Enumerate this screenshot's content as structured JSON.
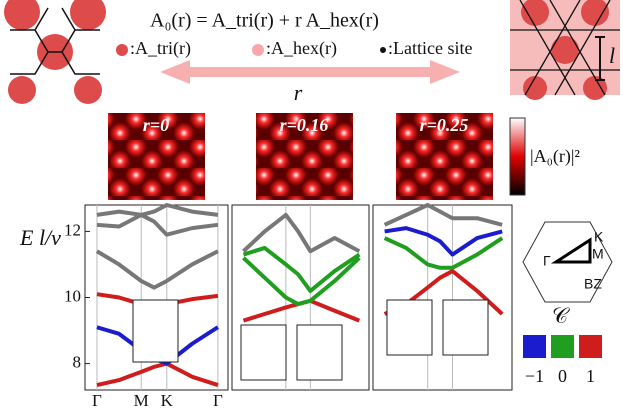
{
  "header": {
    "formula": "A₀(r) = A_tri(r) + r A_hex(r)",
    "legend": [
      ":A_tri(r)",
      ":A_hex(r)",
      ":Lattice site"
    ],
    "arrow_label": "r",
    "length_label": "l"
  },
  "heatmaps": {
    "titles": [
      "r=0",
      "r=0.16",
      "r=0.25"
    ],
    "colorbar_label": "|A₀(r)|²"
  },
  "brillouin_zone": {
    "labels": [
      "K",
      "Γ",
      "M",
      "BZ"
    ]
  },
  "chern_legend": {
    "title": "𝒞",
    "items": [
      {
        "label": "−1",
        "color": "#1c1ccf"
      },
      {
        "label": "0",
        "color": "#1f9e1f"
      },
      {
        "label": "1",
        "color": "#cf1c1c"
      }
    ]
  },
  "chart_data": [
    {
      "type": "line",
      "ylabel": "E l/v",
      "x": [
        0,
        0.5,
        1,
        1.29,
        1.577,
        2.15,
        2.732
      ],
      "xlim": [
        -0.27,
        2.96
      ],
      "xticks": [
        {
          "value": 0,
          "label": "Γ"
        },
        {
          "value": 1,
          "label": "M"
        },
        {
          "value": 1.577,
          "label": "K"
        },
        {
          "value": 2.732,
          "label": "Γ"
        }
      ],
      "ylim": [
        7.2,
        12.8
      ],
      "yticks": [
        8,
        10,
        12
      ],
      "grid": true,
      "series": [
        {
          "color": "#cf1c1c",
          "values": [
            7.35,
            7.5,
            7.75,
            7.9,
            8.0,
            7.6,
            7.35
          ]
        },
        {
          "color": "#1c1ccf",
          "values": [
            9.1,
            8.9,
            8.4,
            8.15,
            8.0,
            8.6,
            9.1
          ]
        },
        {
          "color": "#cf1c1c",
          "values": [
            10.1,
            10.0,
            9.8,
            9.75,
            9.8,
            9.95,
            10.05
          ]
        },
        {
          "color": "#777777",
          "values": [
            11.4,
            11.0,
            10.5,
            10.3,
            10.5,
            11.0,
            11.4
          ]
        },
        {
          "color": "#777777",
          "values": [
            12.2,
            12.15,
            12.5,
            12.3,
            11.9,
            12.1,
            12.2
          ]
        },
        {
          "color": "#777777",
          "values": [
            12.5,
            12.6,
            12.5,
            12.6,
            12.8,
            12.6,
            12.5
          ]
        }
      ]
    },
    {
      "type": "line",
      "x": [
        0,
        0.5,
        1,
        1.29,
        1.577,
        2.15,
        2.732
      ],
      "xlim": [
        -0.27,
        2.96
      ],
      "xticks": [
        1,
        1.577
      ],
      "ylim": [
        7.2,
        12.8
      ],
      "grid": true,
      "series": [
        {
          "color": "#cf1c1c",
          "values": [
            9.3,
            9.5,
            9.7,
            9.8,
            9.9,
            9.6,
            9.3
          ]
        },
        {
          "color": "#1f9e1f",
          "values": [
            11.2,
            10.6,
            10.0,
            9.8,
            9.9,
            10.5,
            11.2
          ]
        },
        {
          "color": "#1f9e1f",
          "values": [
            11.3,
            11.5,
            11.0,
            10.7,
            10.2,
            10.8,
            11.3
          ]
        },
        {
          "color": "#777777",
          "values": [
            11.4,
            12.0,
            12.5,
            12.0,
            11.4,
            11.8,
            11.4
          ]
        }
      ]
    },
    {
      "type": "line",
      "x": [
        0,
        0.5,
        1,
        1.29,
        1.577,
        2.15,
        2.732
      ],
      "xlim": [
        -0.27,
        2.96
      ],
      "xticks": [
        1,
        1.577
      ],
      "ylim": [
        7.2,
        12.8
      ],
      "grid": true,
      "series": [
        {
          "color": "#cf1c1c",
          "values": [
            9.5,
            9.8,
            10.3,
            10.6,
            10.8,
            10.2,
            9.5
          ]
        },
        {
          "color": "#1f9e1f",
          "values": [
            11.8,
            11.5,
            11.0,
            10.9,
            10.9,
            11.3,
            11.8
          ]
        },
        {
          "color": "#1c1ccf",
          "values": [
            12.0,
            12.1,
            11.9,
            11.7,
            11.3,
            11.8,
            12.0
          ]
        },
        {
          "color": "#777777",
          "values": [
            12.2,
            12.5,
            12.8,
            12.6,
            12.4,
            12.4,
            12.2
          ]
        }
      ]
    }
  ]
}
